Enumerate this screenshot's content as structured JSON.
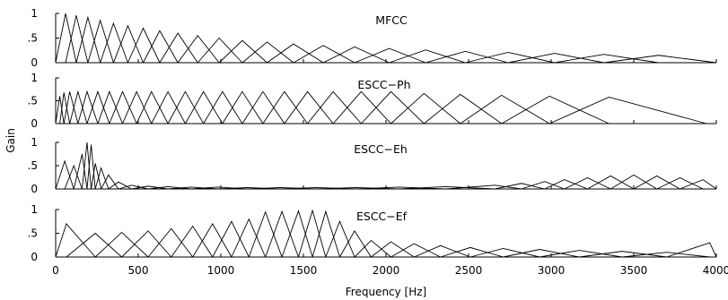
{
  "chart_data": {
    "type": "line",
    "ylabel": "Gain",
    "xlabel": "Frequency [Hz]",
    "xlim": [
      0,
      4000
    ],
    "x_ticks": [
      "0",
      "500",
      "1000",
      "1500",
      "2000",
      "2500",
      "3000",
      "3500",
      "4000"
    ],
    "x_tick_values": [
      0,
      500,
      1000,
      1500,
      2000,
      2500,
      3000,
      3500,
      4000
    ],
    "y_ticks": [
      "0",
      ".5",
      "1"
    ],
    "y_tick_values": [
      0,
      0.5,
      1
    ],
    "grid": false,
    "panels": [
      {
        "title": "MFCC",
        "ylim": [
          0,
          1
        ],
        "filterbank": {
          "description": "mel-spaced triangular filters, gain decreasing with frequency",
          "centers": [
            60,
            125,
            195,
            270,
            350,
            437,
            530,
            630,
            740,
            860,
            990,
            1130,
            1280,
            1440,
            1620,
            1810,
            2020,
            2240,
            2480,
            2740,
            3020,
            3320,
            3650
          ],
          "edges_start": 0,
          "edges_end": 4000,
          "peaks": [
            1.0,
            0.96,
            0.92,
            0.86,
            0.8,
            0.75,
            0.7,
            0.65,
            0.6,
            0.55,
            0.5,
            0.45,
            0.42,
            0.38,
            0.35,
            0.32,
            0.29,
            0.26,
            0.23,
            0.21,
            0.19,
            0.17,
            0.15
          ]
        }
      },
      {
        "title": "ESCC−Ph",
        "ylim": [
          0,
          1
        ],
        "filterbank": {
          "description": "wide-spaced triangular filters of roughly constant gain",
          "centers": [
            25,
            50,
            85,
            135,
            190,
            255,
            325,
            405,
            490,
            580,
            680,
            785,
            895,
            1010,
            1130,
            1255,
            1385,
            1525,
            1680,
            1850,
            2030,
            2230,
            2450,
            2700,
            2990,
            3350
          ],
          "edges_start": 0,
          "edges_end": 3940,
          "peaks": [
            0.6,
            0.68,
            0.7,
            0.7,
            0.7,
            0.7,
            0.7,
            0.7,
            0.7,
            0.7,
            0.7,
            0.7,
            0.7,
            0.7,
            0.7,
            0.7,
            0.7,
            0.7,
            0.7,
            0.7,
            0.7,
            0.66,
            0.64,
            0.62,
            0.6,
            0.58
          ]
        }
      },
      {
        "title": "ESCC−Eh",
        "ylim": [
          0,
          1
        ],
        "filterbank": {
          "description": "filters concentrated at low frequency with high gain, small flat filters elsewhere, rising near 3000-4000 Hz",
          "centers": [
            55,
            110,
            160,
            190,
            215,
            240,
            275,
            320,
            380,
            460,
            560,
            680,
            820,
            980,
            1160,
            1360,
            1580,
            1820,
            2080,
            2360,
            2660,
            2820,
            2960,
            3080,
            3220,
            3360,
            3500,
            3640,
            3780,
            3920
          ],
          "edges_start": 0,
          "edges_end": 4000,
          "peaks": [
            0.6,
            0.5,
            0.75,
            1.0,
            0.95,
            0.55,
            0.45,
            0.3,
            0.15,
            0.08,
            0.06,
            0.05,
            0.04,
            0.04,
            0.03,
            0.03,
            0.03,
            0.03,
            0.04,
            0.05,
            0.08,
            0.12,
            0.16,
            0.2,
            0.24,
            0.28,
            0.3,
            0.28,
            0.24,
            0.2
          ]
        }
      },
      {
        "title": "ESCC−Ef",
        "ylim": [
          0,
          1
        ],
        "filterbank": {
          "description": "triangular filters with gain peaking around 1300-1650 Hz",
          "centers": [
            65,
            240,
            400,
            560,
            700,
            830,
            950,
            1065,
            1170,
            1270,
            1370,
            1470,
            1555,
            1635,
            1720,
            1810,
            1910,
            2030,
            2170,
            2330,
            2510,
            2710,
            2930,
            3170,
            3430,
            3700,
            3960
          ],
          "edges_start": 0,
          "edges_end": 4000,
          "peaks": [
            0.7,
            0.5,
            0.52,
            0.55,
            0.6,
            0.65,
            0.7,
            0.75,
            0.8,
            0.95,
            0.96,
            0.97,
            0.98,
            0.96,
            0.75,
            0.55,
            0.35,
            0.32,
            0.28,
            0.24,
            0.2,
            0.18,
            0.16,
            0.14,
            0.12,
            0.1,
            0.3
          ]
        }
      }
    ]
  }
}
